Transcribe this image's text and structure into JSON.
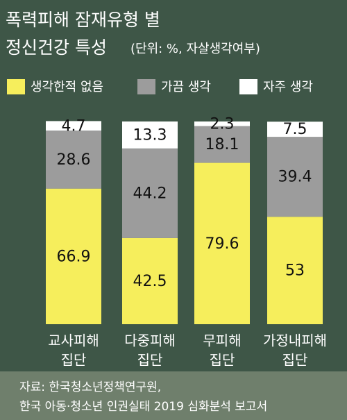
{
  "chart_data": {
    "type": "stacked-bar",
    "title": [
      "폭력피해 잠재유형 별",
      "정신건강 특성"
    ],
    "subtitle": "(단위: %, 자살생각여부)",
    "categories": [
      [
        "교사피해",
        "집단"
      ],
      [
        "다중피해",
        "집단"
      ],
      [
        "무피해",
        "집단"
      ],
      [
        "가정내피해",
        "집단"
      ]
    ],
    "series": [
      {
        "name": "생각한적 없음",
        "color": "#f6ee5c",
        "values": [
          66.9,
          42.5,
          79.6,
          53
        ]
      },
      {
        "name": "가끔 생각",
        "color": "#9c9c9c",
        "values": [
          28.6,
          44.2,
          18.1,
          39.4
        ]
      },
      {
        "name": "자주 생각",
        "color": "#ffffff",
        "values": [
          4.7,
          13.3,
          2.3,
          7.5
        ]
      }
    ],
    "ylim": [
      0,
      100
    ],
    "source": [
      "자료: 한국청소년정책연구원,",
      "한국 아동·청소년 인권실태 2019 심화분석 보고서"
    ]
  }
}
